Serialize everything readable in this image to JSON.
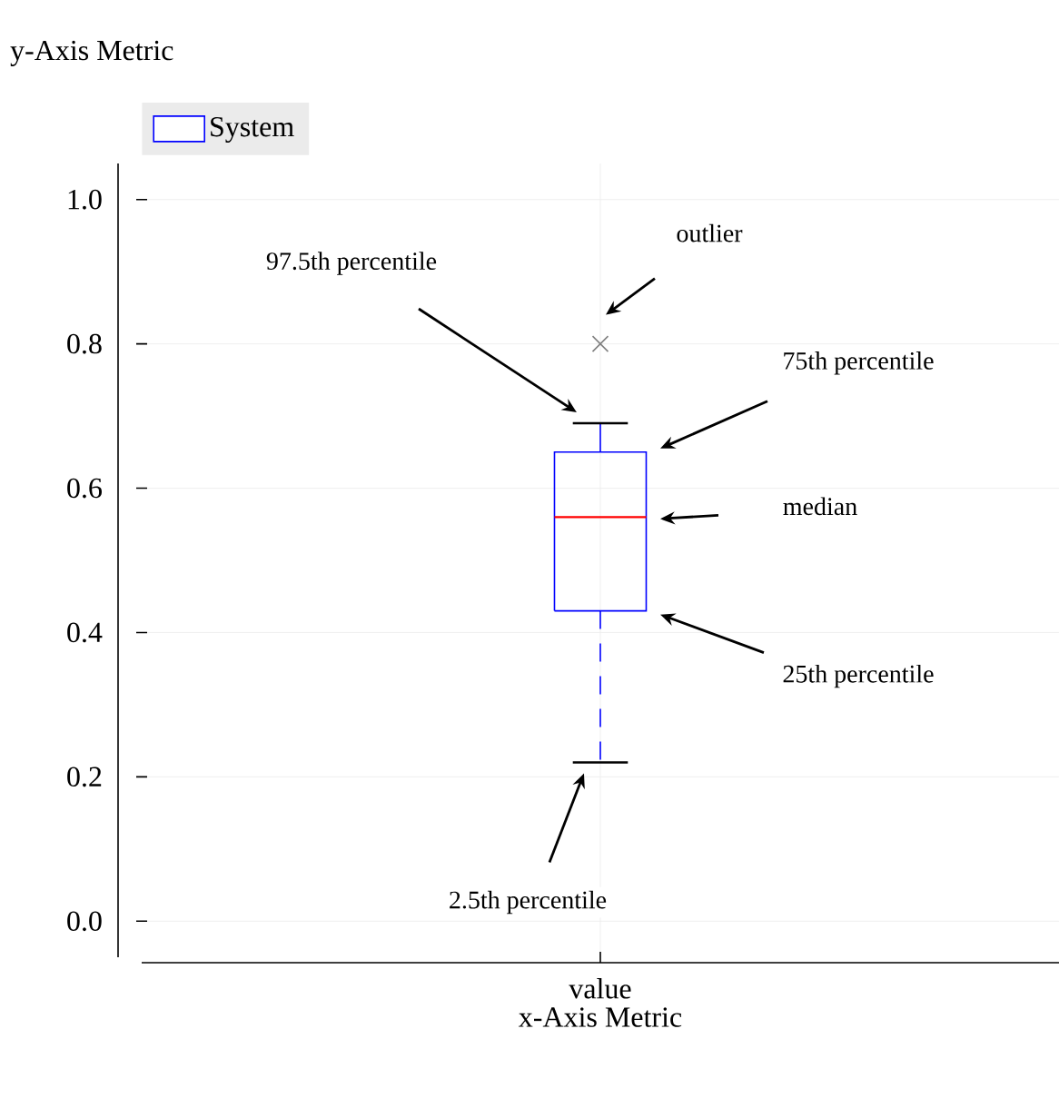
{
  "chart_data": {
    "type": "box",
    "xlabel": "x-Axis Metric",
    "ylabel": "y-Axis Metric",
    "categories": [
      "value"
    ],
    "series": [
      {
        "name": "System",
        "color": "#0000ff",
        "boxes": [
          {
            "low": 0.22,
            "q1": 0.43,
            "median": 0.56,
            "q3": 0.65,
            "high": 0.69,
            "outliers": [
              0.8
            ]
          }
        ]
      }
    ],
    "ylim": [
      -0.05,
      1.05
    ],
    "yticks": [
      {
        "value": 0,
        "label": "0.0"
      },
      {
        "value": 0.2,
        "label": "0.2"
      },
      {
        "value": 0.4,
        "label": "0.4"
      },
      {
        "value": 0.6,
        "label": "0.6"
      },
      {
        "value": 0.8,
        "label": "0.8"
      },
      {
        "value": 1,
        "label": "1.0"
      }
    ],
    "grid": true,
    "legend": "top",
    "annotations": [
      "outlier",
      "97.5th percentile",
      "75th percentile",
      "median",
      "25th percentile",
      "2.5th percentile"
    ]
  }
}
